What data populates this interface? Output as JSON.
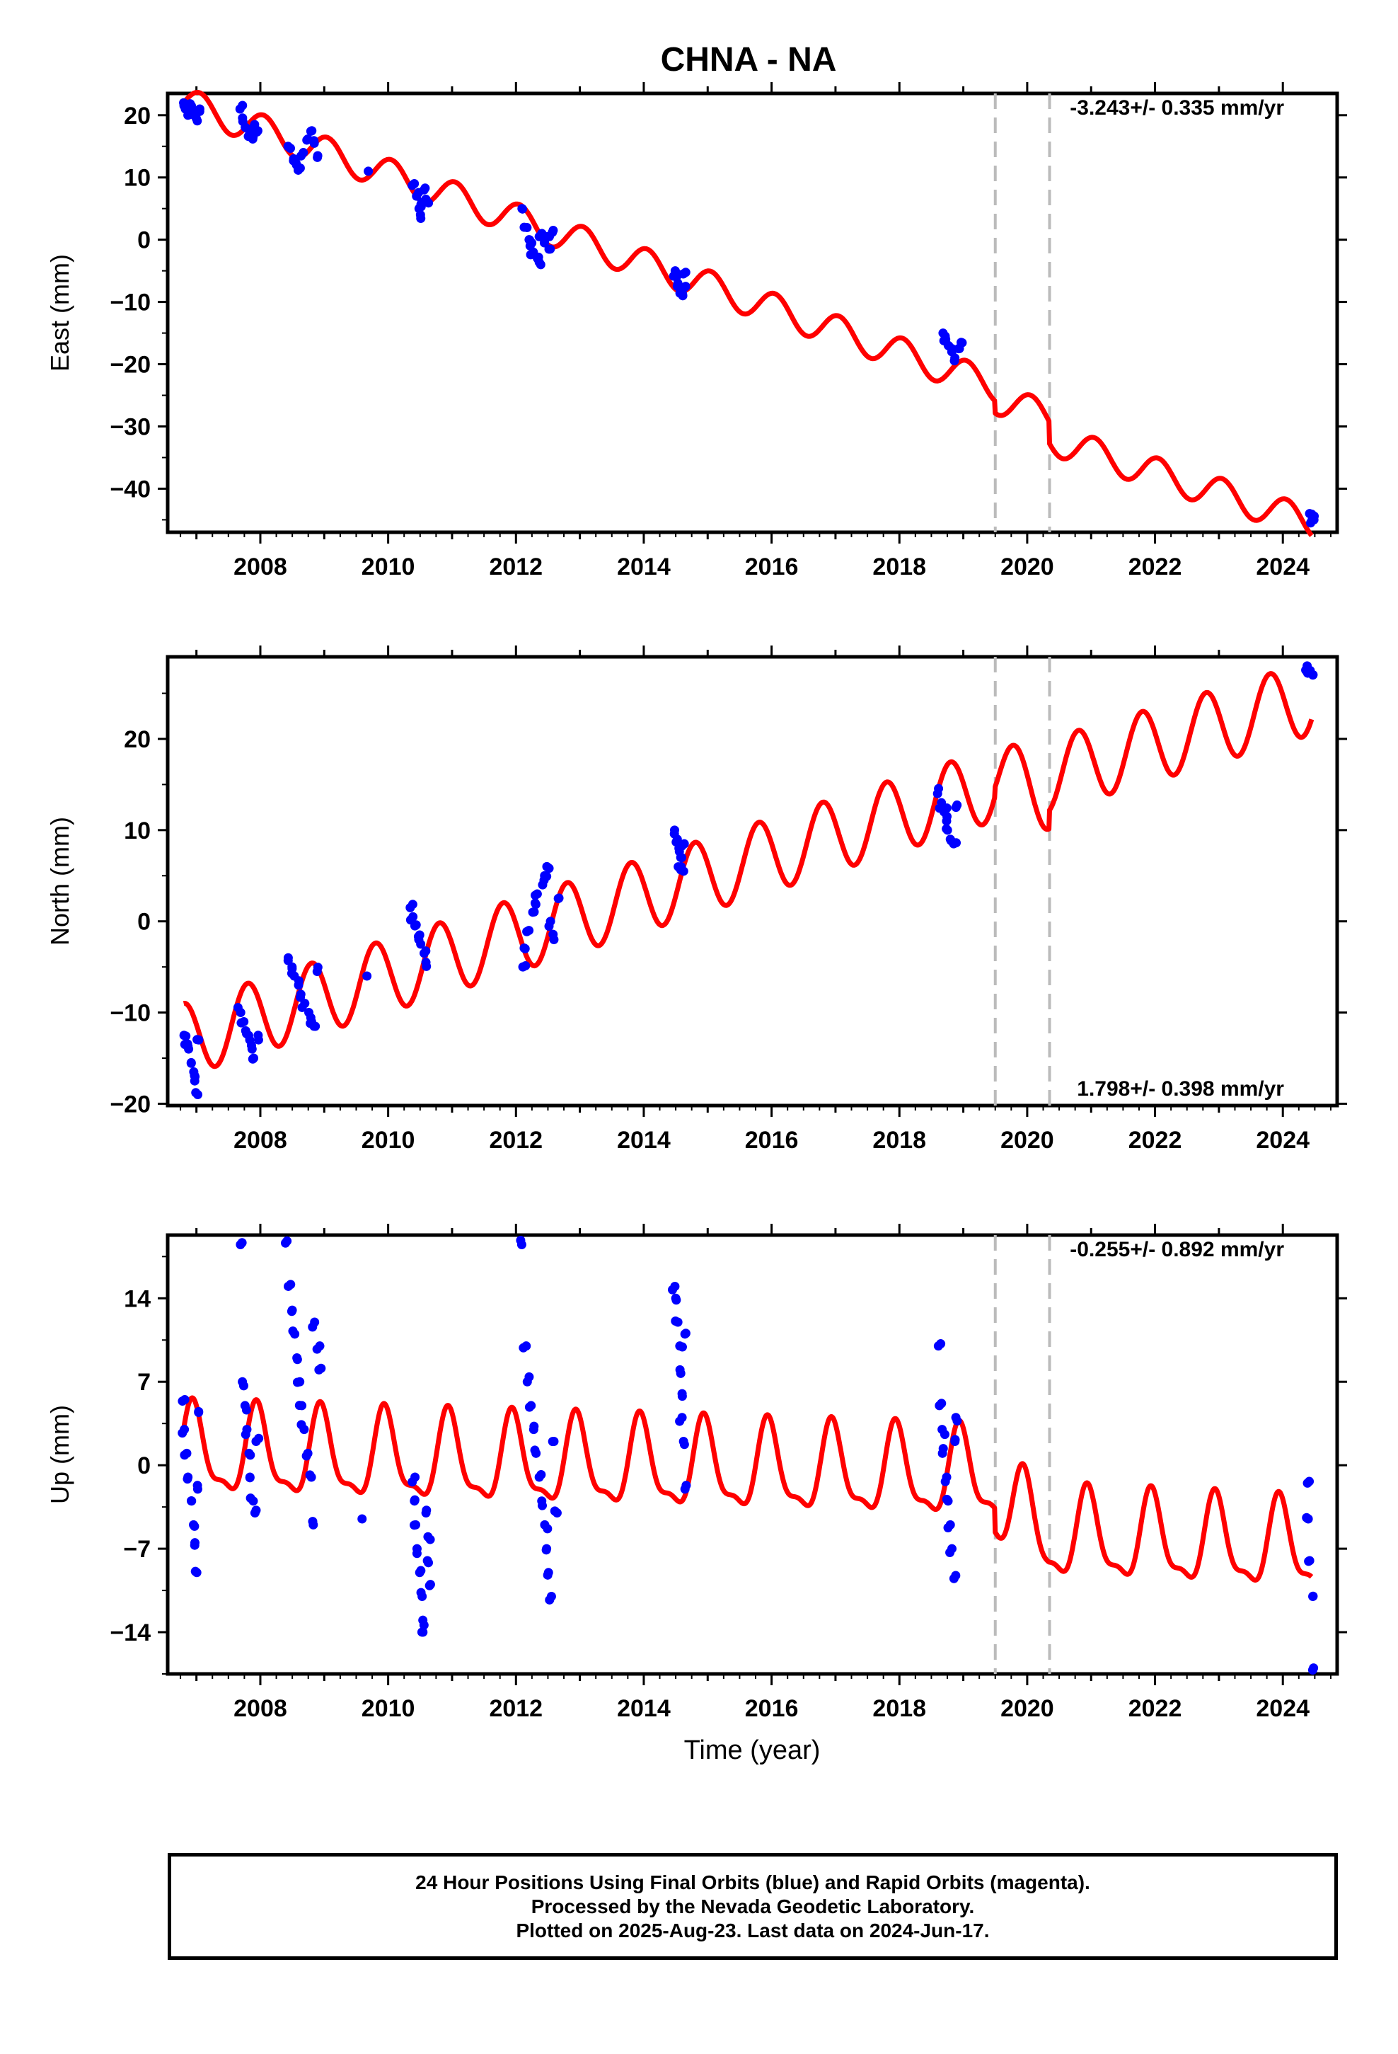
{
  "title": "CHNA - NA",
  "colors": {
    "data": "#0000ff",
    "model": "#ff0000",
    "dashed": "#bbbbbb",
    "axis": "#000000"
  },
  "xlabel": "Time (year)",
  "x_ticks": [
    "2008",
    "2010",
    "2012",
    "2014",
    "2016",
    "2018",
    "2020",
    "2022",
    "2024"
  ],
  "footer": {
    "line1": "24 Hour Positions Using Final Orbits (blue) and Rapid Orbits (magenta).",
    "line2": "Processed by the Nevada Geodetic Laboratory.",
    "line3": "Plotted on 2025-Aug-23. Last data on 2024-Jun-17."
  },
  "chart_data": [
    {
      "type": "scatter",
      "ylabel": "East (mm)",
      "xlim": [
        2006.55,
        2024.85
      ],
      "ylim": [
        -47,
        23.5
      ],
      "yticks": [
        -40,
        -30,
        -20,
        -10,
        0,
        10,
        20
      ],
      "xticks": [
        2008,
        2010,
        2012,
        2014,
        2016,
        2018,
        2020,
        2022,
        2024
      ],
      "rate_label": "-3.243+/- 0.335 mm/yr",
      "rate_position": "top-right",
      "offsets": [
        2019.5,
        2020.35
      ],
      "series": [
        {
          "kind": "points",
          "clusters": [
            {
              "start": 2006.8,
              "end": 2007.05,
              "values": [
                22,
                21,
                20,
                21.5,
                20.5,
                19.5,
                21
              ]
            },
            {
              "start": 2007.7,
              "end": 2007.95,
              "values": [
                21,
                19,
                18,
                17,
                16.5,
                18.5,
                17.5
              ]
            },
            {
              "start": 2008.45,
              "end": 2008.9,
              "values": [
                15,
                13,
                12,
                11.5,
                14,
                16,
                17.5,
                15.5,
                13.5
              ]
            },
            {
              "start": 2009.7,
              "end": 2009.75,
              "values": [
                11
              ]
            },
            {
              "start": 2010.4,
              "end": 2010.6,
              "values": [
                9,
                7,
                5,
                4,
                6,
                8,
                6.5
              ]
            },
            {
              "start": 2012.1,
              "end": 2012.6,
              "values": [
                5,
                2,
                0,
                -1,
                -2,
                -3,
                -4,
                1,
                -0.5,
                0.5,
                -1.5,
                1.5
              ]
            },
            {
              "start": 2014.5,
              "end": 2014.65,
              "values": [
                -5,
                -6,
                -7,
                -8,
                -9,
                -5.5,
                -7.5
              ]
            },
            {
              "start": 2018.7,
              "end": 2018.95,
              "values": [
                -15,
                -16,
                -17,
                -18,
                -19,
                -17.5,
                -16.5
              ]
            },
            {
              "start": 2024.4,
              "end": 2024.47,
              "values": [
                -44,
                -45.5,
                -45
              ]
            }
          ]
        },
        {
          "kind": "model",
          "anchors": [
            [
              2006.8,
              22
            ],
            [
              2019.49,
              -23.5
            ],
            [
              2019.5,
              -25.5
            ],
            [
              2020.34,
              -28.5
            ],
            [
              2020.35,
              -32
            ],
            [
              2024.45,
              -45.5
            ]
          ],
          "annual_amp": 2.5,
          "annual_phase": 0.0
        }
      ]
    },
    {
      "type": "scatter",
      "ylabel": "North (mm)",
      "xlim": [
        2006.55,
        2024.85
      ],
      "ylim": [
        -20.2,
        29
      ],
      "yticks": [
        -20,
        -10,
        0,
        10,
        20
      ],
      "xticks": [
        2008,
        2010,
        2012,
        2014,
        2016,
        2018,
        2020,
        2022,
        2024
      ],
      "rate_label": "1.798+/- 0.398 mm/yr",
      "rate_position": "bottom-right",
      "offsets": [
        2019.5,
        2020.35
      ],
      "series": [
        {
          "kind": "points",
          "clusters": [
            {
              "start": 2006.8,
              "end": 2007.05,
              "values": [
                -12.5,
                -13.5,
                -14,
                -15.5,
                -16.5,
                -17.5,
                -19,
                -13
              ]
            },
            {
              "start": 2007.7,
              "end": 2007.95,
              "values": [
                -10,
                -11,
                -12,
                -13,
                -14,
                -15,
                -12.5
              ]
            },
            {
              "start": 2008.45,
              "end": 2008.9,
              "values": [
                -4,
                -5,
                -6,
                -7,
                -8,
                -9,
                -10,
                -11,
                -11.5,
                -5.5
              ]
            },
            {
              "start": 2009.65,
              "end": 2009.7,
              "values": [
                -6
              ]
            },
            {
              "start": 2010.35,
              "end": 2010.6,
              "values": [
                1.5,
                0.5,
                -0.5,
                -1.5,
                -2.5,
                -3.5,
                -4.5
              ]
            },
            {
              "start": 2012.1,
              "end": 2012.65,
              "values": [
                -5,
                -3,
                -1,
                1,
                2,
                3,
                4,
                5,
                6,
                0,
                -2,
                2.5
              ]
            },
            {
              "start": 2014.5,
              "end": 2014.65,
              "values": [
                10,
                9,
                8,
                7,
                6,
                5.5,
                8.5
              ]
            },
            {
              "start": 2018.6,
              "end": 2018.9,
              "values": [
                14,
                13,
                12,
                11,
                10,
                9,
                8.5,
                12.5
              ]
            },
            {
              "start": 2024.4,
              "end": 2024.47,
              "values": [
                28,
                27.5,
                27
              ]
            }
          ]
        },
        {
          "kind": "model",
          "anchors": [
            [
              2006.8,
              -13
            ],
            [
              2019.49,
              15
            ],
            [
              2019.5,
              16
            ],
            [
              2020.34,
              14
            ],
            [
              2020.35,
              16
            ],
            [
              2024.45,
              24.5
            ]
          ],
          "annual_amp": 4.0,
          "annual_phase": 0.25
        }
      ]
    },
    {
      "type": "scatter",
      "ylabel": "Up (mm)",
      "xlim": [
        2006.55,
        2024.85
      ],
      "ylim": [
        -17.5,
        19.3
      ],
      "yticks": [
        -14,
        -7,
        0,
        7,
        14
      ],
      "xticks": [
        2008,
        2010,
        2012,
        2014,
        2016,
        2018,
        2020,
        2022,
        2024
      ],
      "rate_label": "-0.255+/- 0.892 mm/yr",
      "rate_position": "top-right",
      "offsets": [
        2019.5,
        2020.35
      ],
      "series": [
        {
          "kind": "points",
          "clusters": [
            {
              "start": 2006.8,
              "end": 2007.05,
              "values": [
                5.5,
                3,
                1,
                -1,
                -3,
                -5,
                -6.5,
                -9,
                -2,
                4.5
              ]
            },
            {
              "start": 2007.7,
              "end": 2007.95,
              "values": [
                18.5,
                7,
                5,
                3,
                1,
                -1,
                -3,
                -4,
                2
              ]
            },
            {
              "start": 2008.4,
              "end": 2008.95,
              "values": [
                18.8,
                15,
                13,
                11,
                9,
                7,
                5,
                3,
                1,
                -1,
                -5,
                12,
                8,
                10
              ]
            },
            {
              "start": 2009.6,
              "end": 2009.65,
              "values": [
                -4.5
              ]
            },
            {
              "start": 2010.4,
              "end": 2010.65,
              "values": [
                -1,
                -3,
                -5,
                -7,
                -9,
                -11,
                -13,
                -14,
                -4,
                -6,
                -8,
                -10
              ]
            },
            {
              "start": 2012.1,
              "end": 2012.65,
              "values": [
                18.5,
                10,
                7,
                5,
                3,
                1,
                -1,
                -3,
                -5,
                -7,
                -9,
                -11,
                2,
                -4
              ]
            },
            {
              "start": 2014.5,
              "end": 2014.65,
              "values": [
                15,
                14,
                12,
                10,
                8,
                6,
                4,
                2,
                -2,
                11
              ]
            },
            {
              "start": 2018.6,
              "end": 2018.9,
              "values": [
                10,
                5,
                3,
                1,
                -1,
                -3,
                -5,
                -7,
                -9.5,
                2,
                4
              ]
            },
            {
              "start": 2024.4,
              "end": 2024.47,
              "values": [
                -1.5,
                -4.5,
                -8,
                -11,
                -17
              ]
            }
          ]
        },
        {
          "kind": "model",
          "anchors": [
            [
              2006.8,
              1
            ],
            [
              2019.49,
              -1
            ],
            [
              2019.5,
              -3
            ],
            [
              2020.34,
              -6
            ],
            [
              2020.35,
              -6
            ],
            [
              2024.45,
              -7
            ]
          ],
          "annual_amp": 3.5,
          "annual_phase": 0.1
        }
      ]
    }
  ]
}
